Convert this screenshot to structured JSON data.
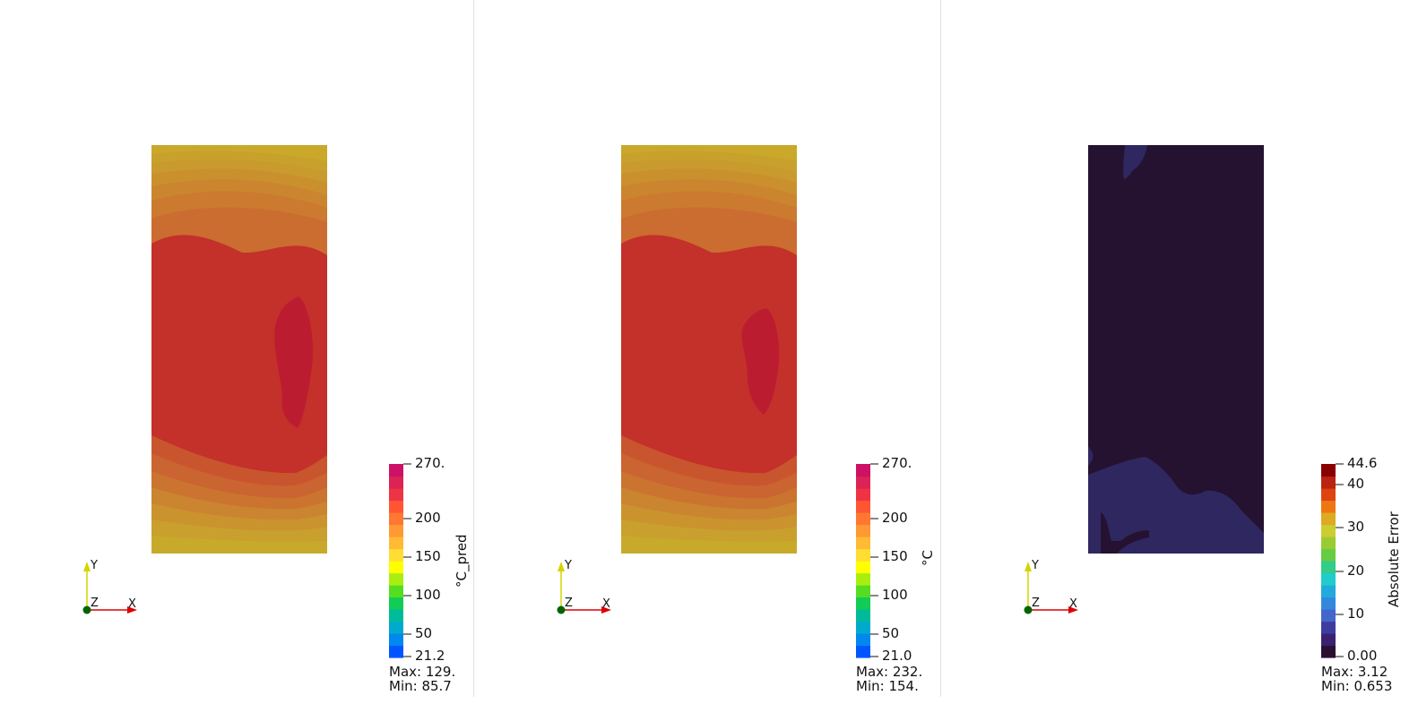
{
  "panels": [
    {
      "id": "pred",
      "colorbar": {
        "title": "°C_pred",
        "ticks": [
          "270.",
          "200",
          "150",
          "100",
          "50",
          "21.2"
        ],
        "max_label": "Max: 129.",
        "min_label": "Min: 85.7"
      }
    },
    {
      "id": "true",
      "colorbar": {
        "title": "°C",
        "ticks": [
          "270.",
          "200",
          "150",
          "100",
          "50",
          "21.0"
        ],
        "max_label": "Max: 232.",
        "min_label": "Min: 154."
      }
    },
    {
      "id": "error",
      "colorbar": {
        "title": "Absolute Error",
        "ticks": [
          "44.6",
          "40",
          "30",
          "20",
          "10",
          "0.00"
        ],
        "max_label": "Max: 3.12",
        "min_label": "Min: 0.653"
      }
    }
  ],
  "axes": {
    "x": "X",
    "y": "Y",
    "z": "Z"
  },
  "colors": {
    "temp_levels": [
      "#0055ff",
      "#0088ee",
      "#00aacc",
      "#00bb99",
      "#11cc55",
      "#55dd22",
      "#aaee11",
      "#ffff00",
      "#ffdd33",
      "#ffbb33",
      "#ff9933",
      "#ff7733",
      "#ff5533",
      "#ee3344",
      "#dd2255",
      "#cc1166"
    ],
    "error_levels": [
      "#2a1030",
      "#3b2270",
      "#3d3d9f",
      "#4466cc",
      "#3388dd",
      "#22aadd",
      "#22cccc",
      "#33cc88",
      "#66cc44",
      "#99cc33",
      "#cccc33",
      "#ddaa22",
      "#ee7711",
      "#dd4411",
      "#bb2211",
      "#880000"
    ],
    "band_yellow": "#c9a82a",
    "band_orange": "#cc6633",
    "band_red": "#c4302a",
    "hot_red": "#bc1c30",
    "err_dark": "#241230",
    "err_band": "#2f2760"
  }
}
